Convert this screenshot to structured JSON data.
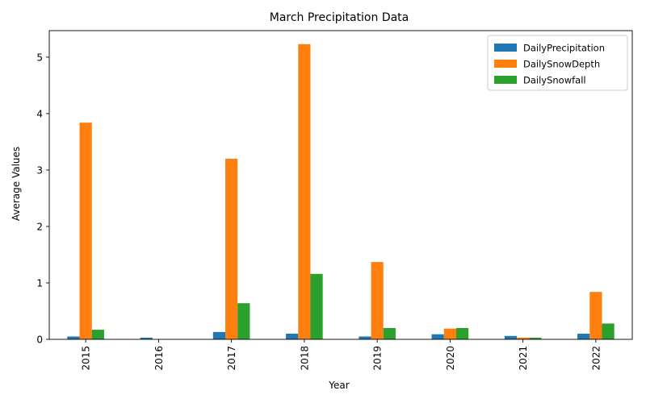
{
  "chart_data": {
    "type": "bar",
    "title": "March Precipitation Data",
    "xlabel": "Year",
    "ylabel": "Average Values",
    "categories": [
      "2015",
      "2016",
      "2017",
      "2018",
      "2019",
      "2020",
      "2021",
      "2022"
    ],
    "series": [
      {
        "name": "DailyPrecipitation",
        "color": "#1f77b4",
        "values": [
          0.05,
          0.03,
          0.13,
          0.1,
          0.05,
          0.09,
          0.06,
          0.1
        ]
      },
      {
        "name": "DailySnowDepth",
        "color": "#ff7f0e",
        "values": [
          3.84,
          0.0,
          3.2,
          5.23,
          1.37,
          0.19,
          0.03,
          0.84
        ]
      },
      {
        "name": "DailySnowfall",
        "color": "#2ca02c",
        "values": [
          0.17,
          0.0,
          0.64,
          1.16,
          0.2,
          0.2,
          0.03,
          0.28
        ]
      }
    ],
    "ylim": [
      0,
      5.47
    ],
    "yticks": [
      0,
      1,
      2,
      3,
      4,
      5
    ],
    "grid": false,
    "legend_position": "top-right"
  }
}
